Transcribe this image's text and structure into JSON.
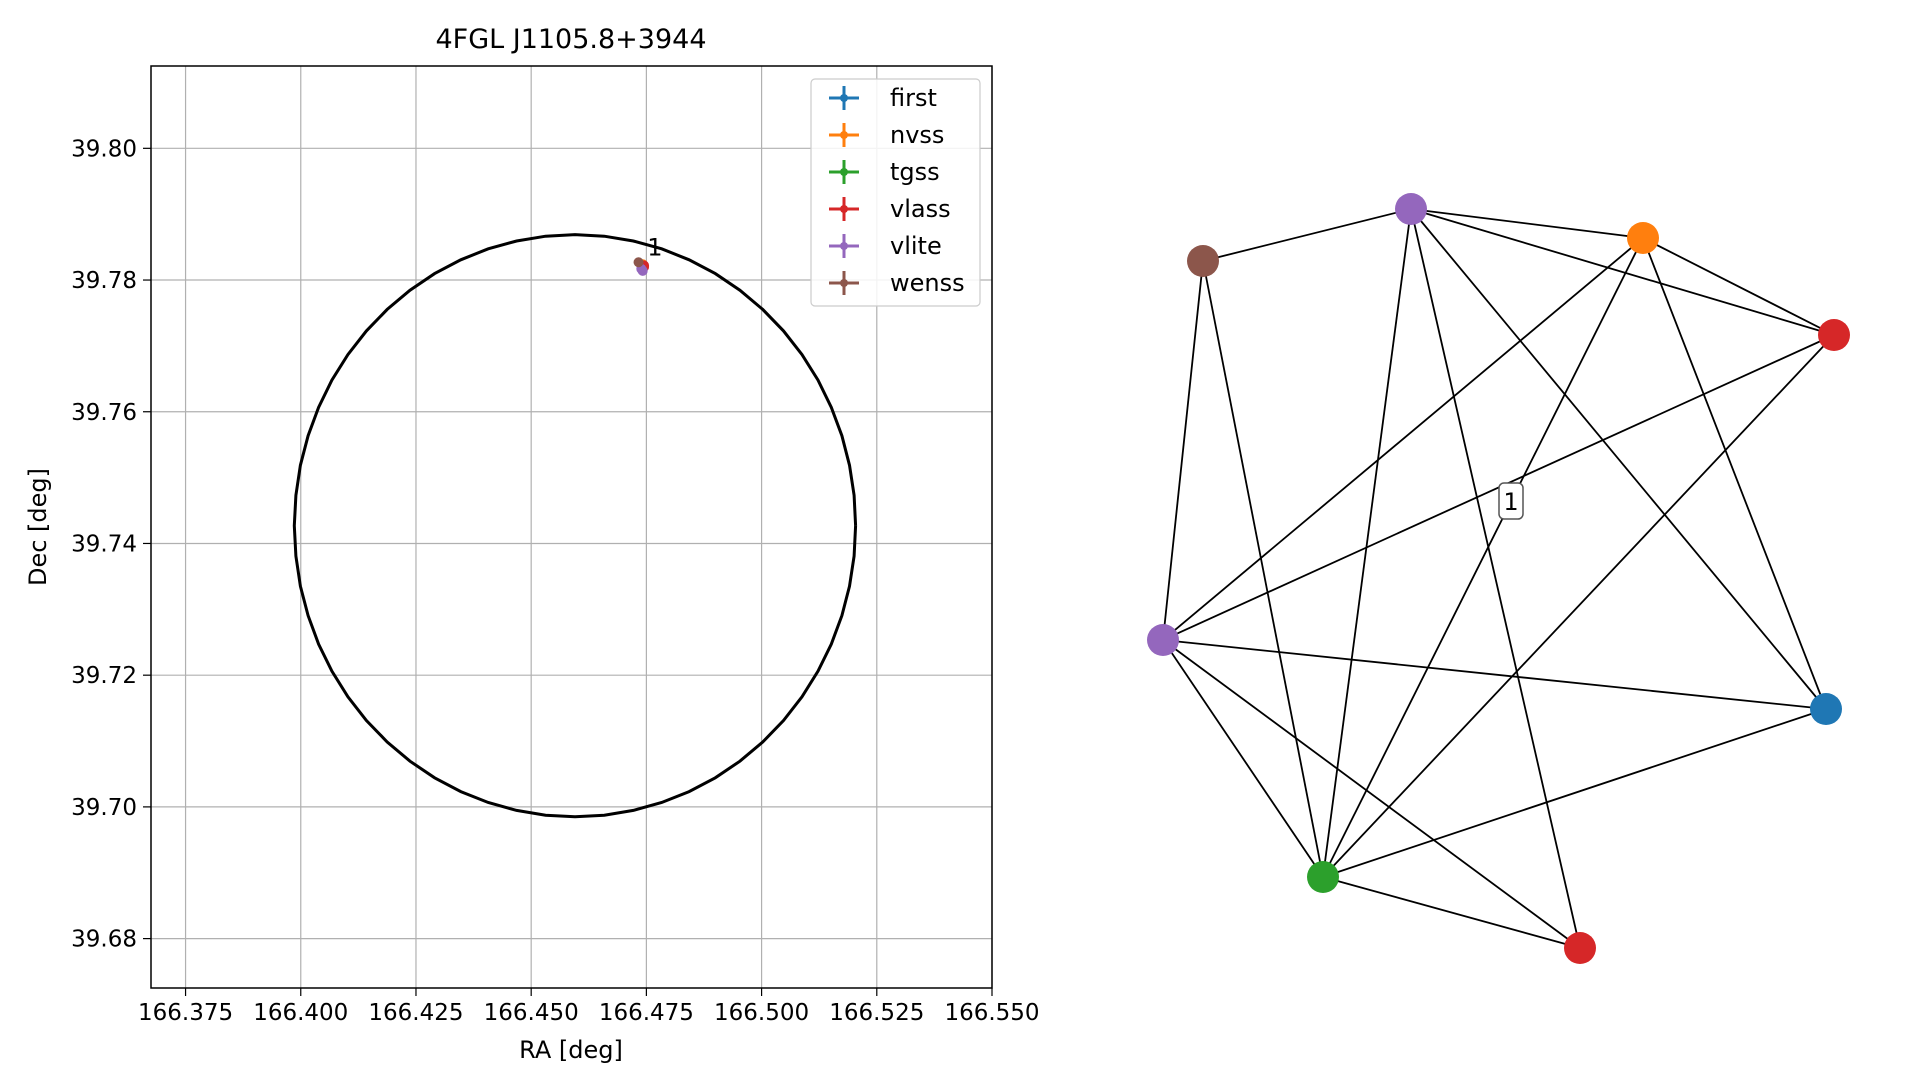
{
  "chart_data": [
    {
      "type": "scatter",
      "title": "4FGL J1105.8+3944",
      "xlabel": "RA [deg]",
      "ylabel": "Dec [deg]",
      "xlim": [
        166.3675,
        166.55
      ],
      "ylim": [
        39.6725,
        39.8125
      ],
      "xticks": [
        166.375,
        166.4,
        166.425,
        166.45,
        166.475,
        166.5,
        166.525,
        166.55
      ],
      "xtick_labels": [
        "166.375",
        "166.400",
        "166.425",
        "166.450",
        "166.475",
        "166.500",
        "166.525",
        "166.550"
      ],
      "yticks": [
        39.68,
        39.7,
        39.72,
        39.74,
        39.76,
        39.78,
        39.8
      ],
      "ytick_labels": [
        "39.68",
        "39.70",
        "39.72",
        "39.74",
        "39.76",
        "39.78",
        "39.80"
      ],
      "grid": true,
      "legend_position": "top-right",
      "circle": {
        "center": [
          166.4595,
          39.7427
        ],
        "radius_ra": 0.0609,
        "radius_dec": 0.0442,
        "color": "#000000"
      },
      "series": [
        {
          "name": "first",
          "color": "#1f77b4",
          "points": [
            [
              166.4742,
              39.7822
            ]
          ]
        },
        {
          "name": "nvss",
          "color": "#ff7f0e",
          "points": [
            [
              166.4742,
              39.7824
            ]
          ]
        },
        {
          "name": "tgss",
          "color": "#2ca02c",
          "points": [
            [
              166.4741,
              39.7819
            ]
          ]
        },
        {
          "name": "vlass",
          "color": "#d62728",
          "points": [
            [
              166.4745,
              39.7822
            ],
            [
              166.4745,
              39.782
            ]
          ]
        },
        {
          "name": "vlite",
          "color": "#9467bd",
          "points": [
            [
              166.4742,
              39.7814
            ],
            [
              166.4739,
              39.7817
            ]
          ]
        },
        {
          "name": "wenss",
          "color": "#8c564b",
          "points": [
            [
              166.4733,
              39.7827
            ]
          ]
        }
      ],
      "annotations": [
        {
          "text": "1",
          "x": 166.4752,
          "y": 39.7837
        }
      ]
    },
    {
      "type": "network",
      "cluster_label": "1",
      "nodes": [
        {
          "color": "#8c564b"
        },
        {
          "color": "#9467bd"
        },
        {
          "color": "#ff7f0e"
        },
        {
          "color": "#d62728"
        },
        {
          "color": "#9467bd"
        },
        {
          "color": "#1f77b4"
        },
        {
          "color": "#2ca02c"
        },
        {
          "color": "#d62728"
        }
      ],
      "edges": [
        [
          0,
          1
        ],
        [
          0,
          4
        ],
        [
          0,
          6
        ],
        [
          1,
          2
        ],
        [
          1,
          3
        ],
        [
          1,
          5
        ],
        [
          1,
          6
        ],
        [
          1,
          7
        ],
        [
          2,
          3
        ],
        [
          2,
          4
        ],
        [
          2,
          5
        ],
        [
          2,
          6
        ],
        [
          3,
          4
        ],
        [
          3,
          6
        ],
        [
          4,
          5
        ],
        [
          4,
          6
        ],
        [
          4,
          7
        ],
        [
          5,
          6
        ],
        [
          6,
          7
        ]
      ]
    }
  ]
}
